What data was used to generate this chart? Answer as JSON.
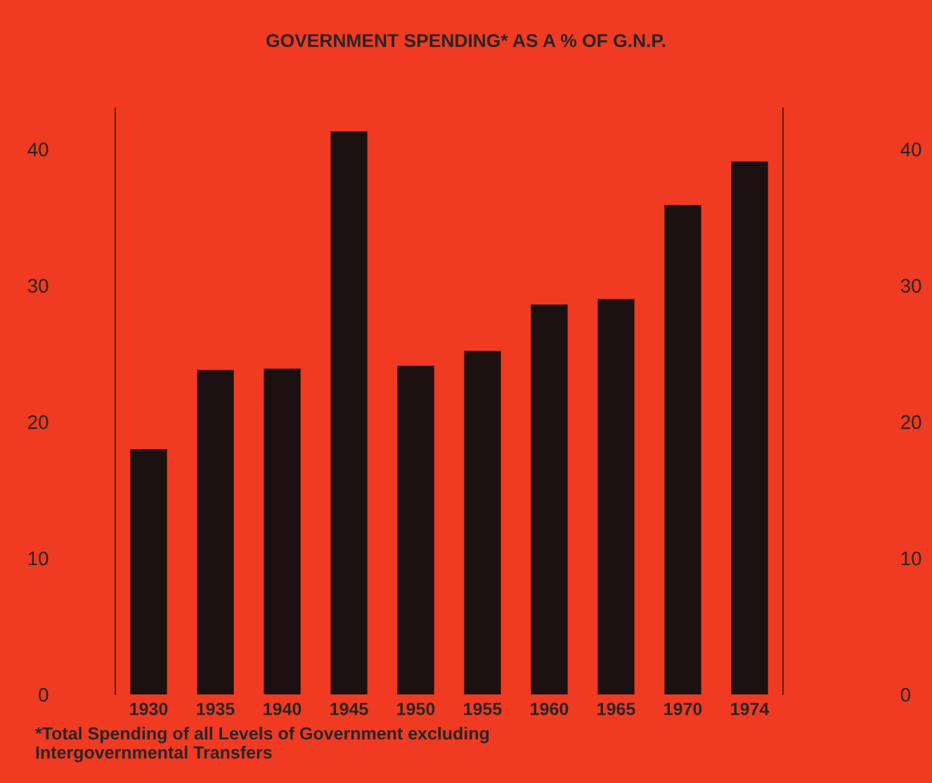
{
  "chart_data": {
    "type": "bar",
    "title": "GOVERNMENT SPENDING* AS A % OF G.N.P.",
    "categories": [
      "1930",
      "1935",
      "1940",
      "1945",
      "1950",
      "1955",
      "1960",
      "1965",
      "1970",
      "1974"
    ],
    "values": [
      18,
      23.8,
      23.9,
      41.3,
      24.1,
      25.2,
      28.6,
      29.0,
      35.9,
      39.1
    ],
    "color": "#1c1010",
    "ylim": [
      0,
      43
    ],
    "yticks": [
      0,
      10,
      20,
      30,
      40
    ],
    "y2lim": [
      0,
      43
    ],
    "y2ticks": [
      0,
      10,
      20,
      30,
      40
    ],
    "grid": false,
    "annotations": [
      "*Total Spending of all Levels of Government excluding\nIntergovernmental Transfers"
    ]
  }
}
